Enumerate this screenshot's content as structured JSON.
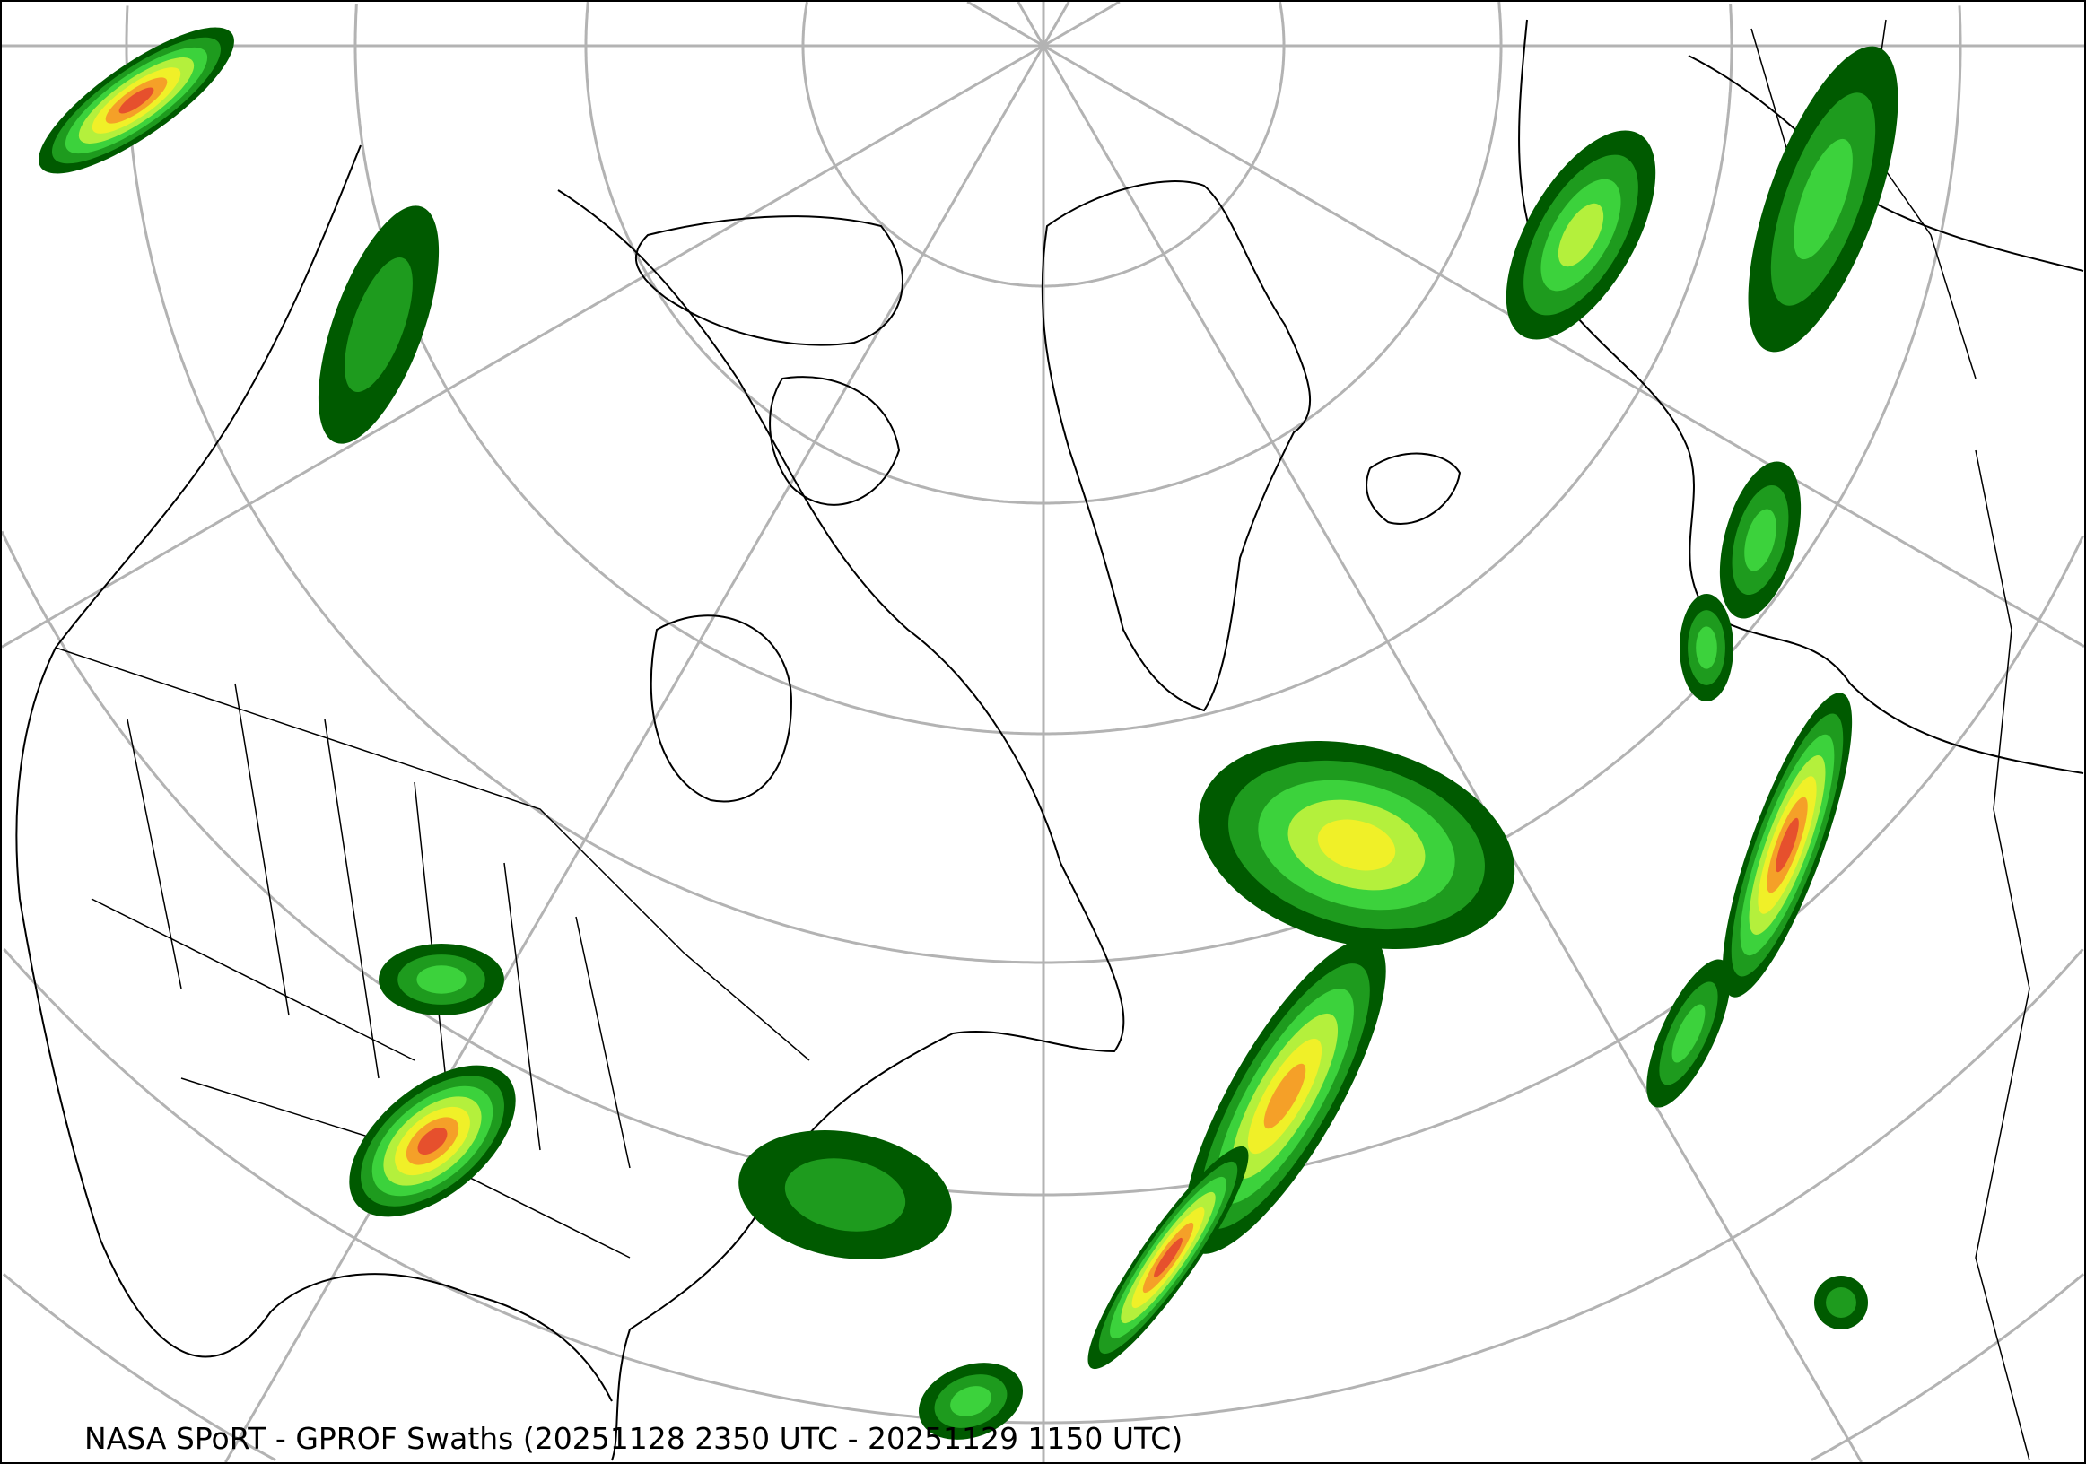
{
  "title": "NASA SPoRT - GPROF Swaths (20251128 2350 UTC - 20251129 1150 UTC)",
  "map": {
    "projection": "north-polar-stereographic",
    "graticule_color": "#b3b3b3",
    "coastline_color": "#000000",
    "background": "#ffffff",
    "precip_colors": [
      "#005a00",
      "#1e9b1e",
      "#3cd23c",
      "#b4f03c",
      "#f0f028",
      "#f5a028",
      "#e6502d"
    ]
  }
}
